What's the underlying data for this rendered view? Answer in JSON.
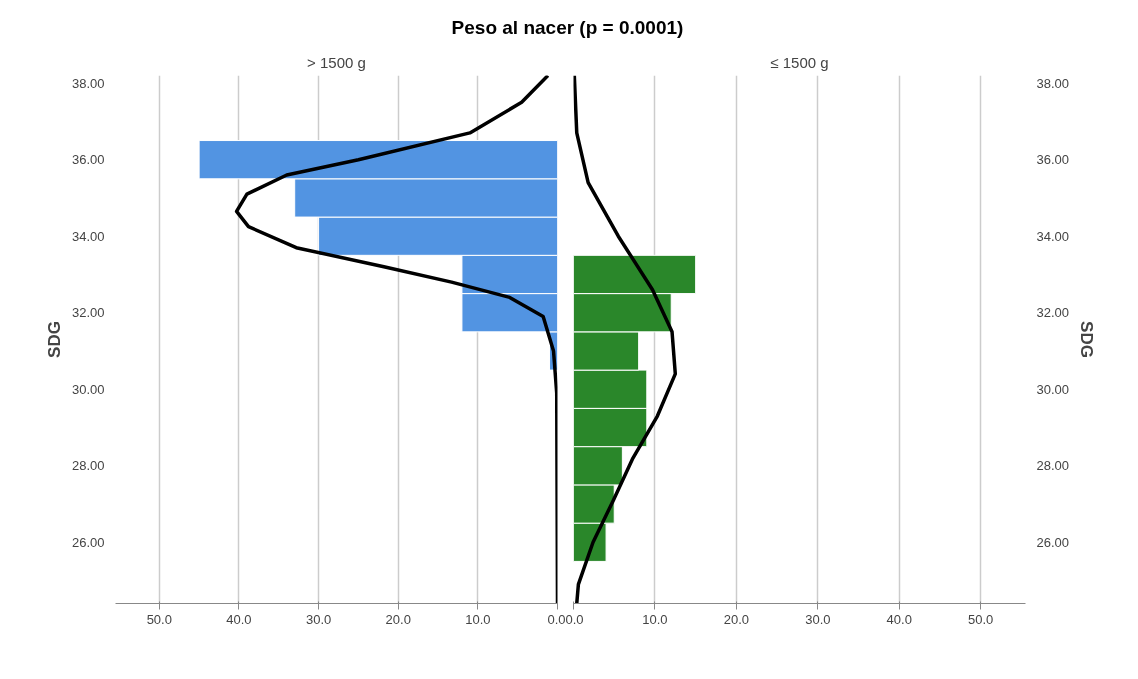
{
  "chart_data": [
    {
      "type": "histogram",
      "orientation": "horizontal",
      "title": "Peso al nacer (p = 0.0001)",
      "subtitle": "> 1500 g",
      "ylabel": "SDG",
      "series": [
        {
          "color": "#5294e2",
          "bins": [
            30.5,
            31.5,
            32.5,
            33.5,
            34.5,
            35.5,
            36.5
          ],
          "values": [
            1,
            12,
            12,
            30,
            33,
            45
          ]
        },
        {
          "type": "line",
          "color": "#000000",
          "x": [
            24.4,
            29.9,
            31.0,
            31.9,
            32.4,
            32.8,
            33.2,
            33.7,
            34.25,
            34.65,
            35.1,
            35.6,
            36.0,
            36.7,
            37.5,
            38.2
          ],
          "values": [
            0,
            0.1,
            0.5,
            1.8,
            6,
            13.3,
            21.8,
            32.8,
            38.8,
            40.3,
            39,
            34,
            25,
            11,
            4.5,
            1.2
          ]
        }
      ],
      "xlim": [
        55.5,
        0
      ],
      "xticks": [
        {
          "value": 50,
          "label": "50.0"
        },
        {
          "value": 40,
          "label": "40.0"
        },
        {
          "value": 30,
          "label": "30.0"
        },
        {
          "value": 20,
          "label": "20.0"
        },
        {
          "value": 10,
          "label": "10.0"
        },
        {
          "value": 0,
          "label": "0.0"
        }
      ],
      "ylim": [
        24.4,
        38.2
      ],
      "yticks": [
        {
          "value": 26,
          "label": "26.00"
        },
        {
          "value": 28,
          "label": "28.00"
        },
        {
          "value": 30,
          "label": "30.00"
        },
        {
          "value": 32,
          "label": "32.00"
        },
        {
          "value": 34,
          "label": "34.00"
        },
        {
          "value": 36,
          "label": "36.00"
        },
        {
          "value": 38,
          "label": "38.00"
        }
      ],
      "grid": "x",
      "legend": false
    },
    {
      "type": "histogram",
      "orientation": "horizontal",
      "subtitle": "≤ 1500 g",
      "ylabel": "SDG",
      "series": [
        {
          "color": "#2a872a",
          "bins": [
            25.5,
            26.5,
            27.5,
            28.5,
            29.5,
            30.5,
            31.5,
            32.5,
            33.5
          ],
          "values": [
            4,
            5,
            6,
            9,
            9,
            8,
            12,
            15
          ]
        },
        {
          "type": "line",
          "color": "#000000",
          "x": [
            24.4,
            24.9,
            26.0,
            27.1,
            28.2,
            29.3,
            30.4,
            31.5,
            32.6,
            34.0,
            35.4,
            36.7,
            38.2
          ],
          "values": [
            0.4,
            0.6,
            2.4,
            4.9,
            7.3,
            10.3,
            12.5,
            12.1,
            9.7,
            5.5,
            1.8,
            0.4,
            0.1
          ]
        }
      ],
      "xlim": [
        0,
        55.5
      ],
      "xticks": [
        {
          "value": 0,
          "label": "0.0"
        },
        {
          "value": 10,
          "label": "10.0"
        },
        {
          "value": 20,
          "label": "20.0"
        },
        {
          "value": 30,
          "label": "30.0"
        },
        {
          "value": 40,
          "label": "40.0"
        },
        {
          "value": 50,
          "label": "50.0"
        }
      ],
      "ylim": [
        24.4,
        38.2
      ],
      "yticks": [
        {
          "value": 26,
          "label": "26.00"
        },
        {
          "value": 28,
          "label": "28.00"
        },
        {
          "value": 30,
          "label": "30.00"
        },
        {
          "value": 32,
          "label": "32.00"
        },
        {
          "value": 34,
          "label": "34.00"
        },
        {
          "value": 36,
          "label": "36.00"
        },
        {
          "value": 38,
          "label": "38.00"
        }
      ],
      "grid": "x",
      "legend": false
    }
  ]
}
